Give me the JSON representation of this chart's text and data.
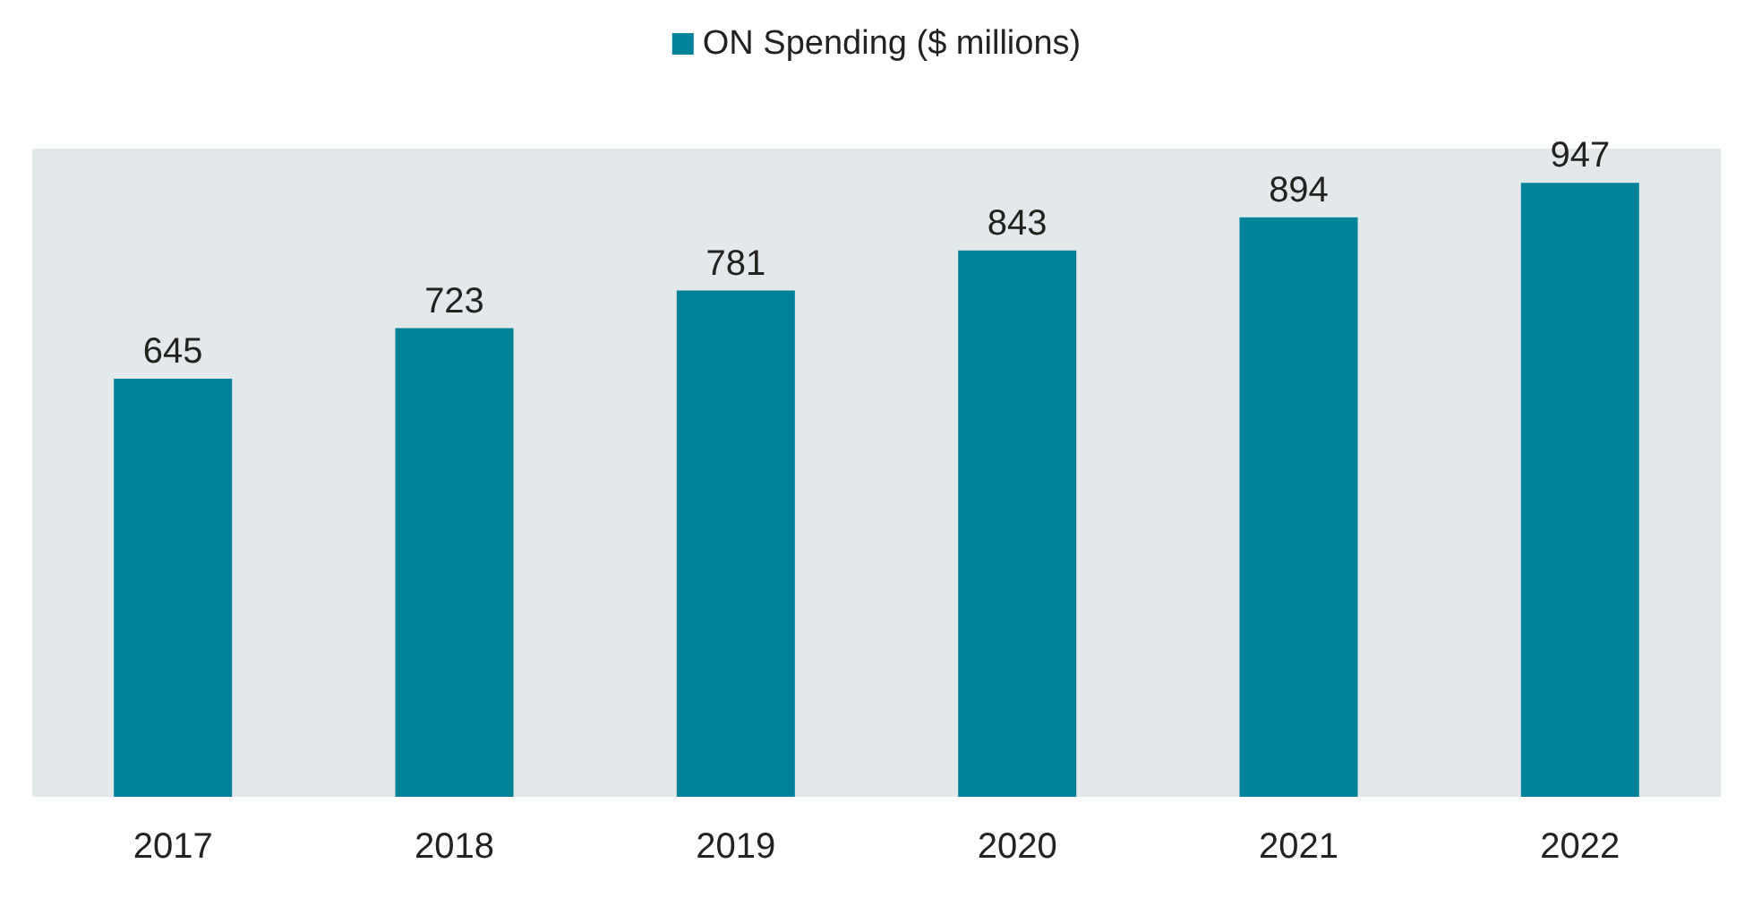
{
  "chart_data": {
    "type": "bar",
    "categories": [
      "2017",
      "2018",
      "2019",
      "2020",
      "2021",
      "2022"
    ],
    "series": [
      {
        "name": "ON Spending ($ millions)",
        "color": "#00829b",
        "values": [
          645,
          723,
          781,
          843,
          894,
          947
        ]
      }
    ],
    "data_labels": true,
    "legend": "top"
  }
}
